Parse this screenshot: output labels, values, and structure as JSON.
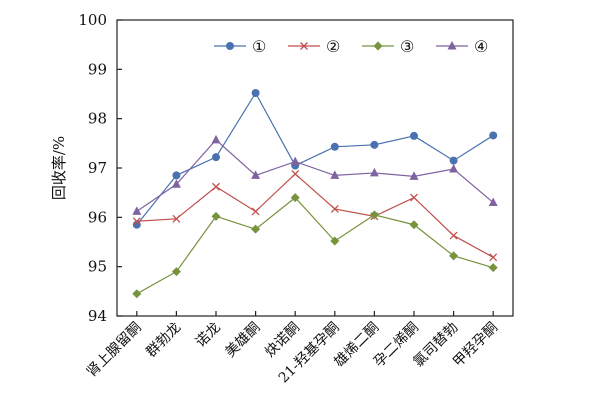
{
  "chart_data": {
    "type": "line",
    "ylabel": "回收率/%",
    "xlabel": "",
    "ylim": [
      94,
      100
    ],
    "yticks": [
      94,
      95,
      96,
      97,
      98,
      99,
      100
    ],
    "grid": false,
    "legend_position": "top-right",
    "categories": [
      "肾上腺留酮",
      "群勃龙",
      "诺龙",
      "美雄酮",
      "炔诺酮",
      "21-羟基孕酮",
      "雄烯二酮",
      "孕二烯酮",
      "氯司替勃",
      "甲羟孕酮"
    ],
    "series": [
      {
        "name": "①",
        "color": "#4a72b0",
        "marker": "circle",
        "values": [
          95.85,
          96.85,
          97.22,
          98.52,
          97.05,
          97.43,
          97.47,
          97.65,
          97.15,
          97.66
        ]
      },
      {
        "name": "②",
        "color": "#c0504d",
        "marker": "x",
        "values": [
          95.92,
          95.97,
          96.62,
          96.12,
          96.88,
          96.17,
          96.02,
          96.4,
          95.63,
          95.19
        ]
      },
      {
        "name": "③",
        "color": "#77933c",
        "marker": "diamond",
        "values": [
          94.45,
          94.9,
          96.02,
          95.76,
          96.4,
          95.52,
          96.05,
          95.85,
          95.22,
          94.98
        ]
      },
      {
        "name": "④",
        "color": "#7f63a1",
        "marker": "triangle",
        "values": [
          96.12,
          96.67,
          97.57,
          96.85,
          97.13,
          96.85,
          96.9,
          96.83,
          96.98,
          96.3
        ]
      }
    ]
  }
}
